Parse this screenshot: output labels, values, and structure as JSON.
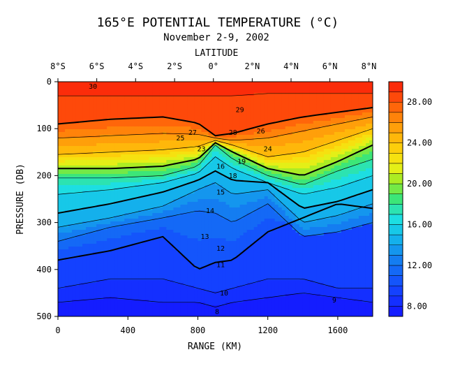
{
  "chart_data": {
    "type": "heatmap",
    "title": "165°E POTENTIAL TEMPERATURE (°C)",
    "subtitle": "November 2-9, 2002",
    "top_axis_label": "LATITUDE",
    "xlabel": "RANGE (KM)",
    "ylabel": "PRESSURE (DB)",
    "xlim": [
      0,
      1800
    ],
    "ylim": [
      0,
      500
    ],
    "y_inverted": true,
    "x_ticks": [
      0,
      400,
      800,
      1200,
      1600
    ],
    "x_tick_labels": [
      "0",
      "400",
      "800",
      "1200",
      "1600"
    ],
    "y_ticks": [
      0,
      100,
      200,
      300,
      400,
      500
    ],
    "y_tick_labels": [
      "0",
      "100",
      "200",
      "300",
      "400",
      "500"
    ],
    "top_ticks_km": [
      0,
      222,
      444,
      667,
      889,
      1111,
      1333,
      1555,
      1778
    ],
    "top_tick_labels": [
      "8°S",
      "6°S",
      "4°S",
      "2°S",
      "0°",
      "2°N",
      "4°N",
      "6°N",
      "8°N"
    ],
    "colorbar": {
      "min": 7,
      "max": 30,
      "ticks": [
        8,
        12,
        16,
        20,
        24,
        28
      ],
      "tick_labels": [
        "8.00",
        "12.00",
        "16.00",
        "20.00",
        "24.00",
        "28.00"
      ]
    },
    "levels": [
      7,
      8,
      9,
      10,
      11,
      12,
      13,
      14,
      15,
      16,
      17,
      18,
      19,
      20,
      21,
      22,
      23,
      24,
      25,
      26,
      27,
      28,
      29,
      30
    ],
    "profile_x_km": [
      0,
      300,
      600,
      800,
      900,
      1000,
      1200,
      1400,
      1600,
      1800
    ],
    "isotherm_depths_db": {
      "29": [
        30,
        30,
        30,
        30,
        30,
        30,
        25,
        25,
        25,
        25
      ],
      "28": [
        90,
        80,
        75,
        88,
        115,
        110,
        90,
        75,
        65,
        55
      ],
      "26": [
        120,
        115,
        110,
        112,
        120,
        125,
        120,
        105,
        90,
        75
      ],
      "24": [
        155,
        150,
        145,
        138,
        125,
        135,
        160,
        150,
        125,
        100
      ],
      "20": [
        185,
        185,
        180,
        165,
        130,
        150,
        185,
        200,
        170,
        135
      ],
      "18": [
        205,
        205,
        200,
        180,
        135,
        165,
        200,
        220,
        190,
        165
      ],
      "16": [
        240,
        230,
        215,
        195,
        160,
        185,
        215,
        240,
        225,
        200
      ],
      "15": [
        280,
        260,
        235,
        210,
        190,
        210,
        215,
        270,
        255,
        230
      ],
      "14": [
        310,
        290,
        265,
        230,
        215,
        240,
        230,
        300,
        285,
        260
      ],
      "12": [
        340,
        310,
        290,
        275,
        280,
        300,
        260,
        330,
        320,
        300
      ],
      "10": [
        380,
        360,
        330,
        400,
        385,
        380,
        320,
        290,
        260,
        270
      ],
      "9": [
        440,
        420,
        420,
        440,
        450,
        440,
        420,
        420,
        440,
        440
      ],
      "8": [
        470,
        460,
        470,
        470,
        480,
        470,
        460,
        450,
        460,
        470
      ]
    },
    "contour_labels": [
      {
        "text": "30",
        "x": 200,
        "y": 15
      },
      {
        "text": "29",
        "x": 1040,
        "y": 65
      },
      {
        "text": "28",
        "x": 1000,
        "y": 113
      },
      {
        "text": "27",
        "x": 770,
        "y": 113
      },
      {
        "text": "26",
        "x": 1160,
        "y": 110
      },
      {
        "text": "25",
        "x": 700,
        "y": 125
      },
      {
        "text": "24",
        "x": 1200,
        "y": 148
      },
      {
        "text": "23",
        "x": 820,
        "y": 148
      },
      {
        "text": "16",
        "x": 930,
        "y": 185
      },
      {
        "text": "18",
        "x": 1000,
        "y": 205
      },
      {
        "text": "19",
        "x": 1050,
        "y": 175
      },
      {
        "text": "15",
        "x": 930,
        "y": 240
      },
      {
        "text": "14",
        "x": 870,
        "y": 280
      },
      {
        "text": "13",
        "x": 840,
        "y": 335
      },
      {
        "text": "12",
        "x": 930,
        "y": 360
      },
      {
        "text": "11",
        "x": 930,
        "y": 395
      },
      {
        "text": "10",
        "x": 950,
        "y": 455
      },
      {
        "text": "9",
        "x": 1580,
        "y": 470
      },
      {
        "text": "8",
        "x": 910,
        "y": 495
      }
    ]
  }
}
